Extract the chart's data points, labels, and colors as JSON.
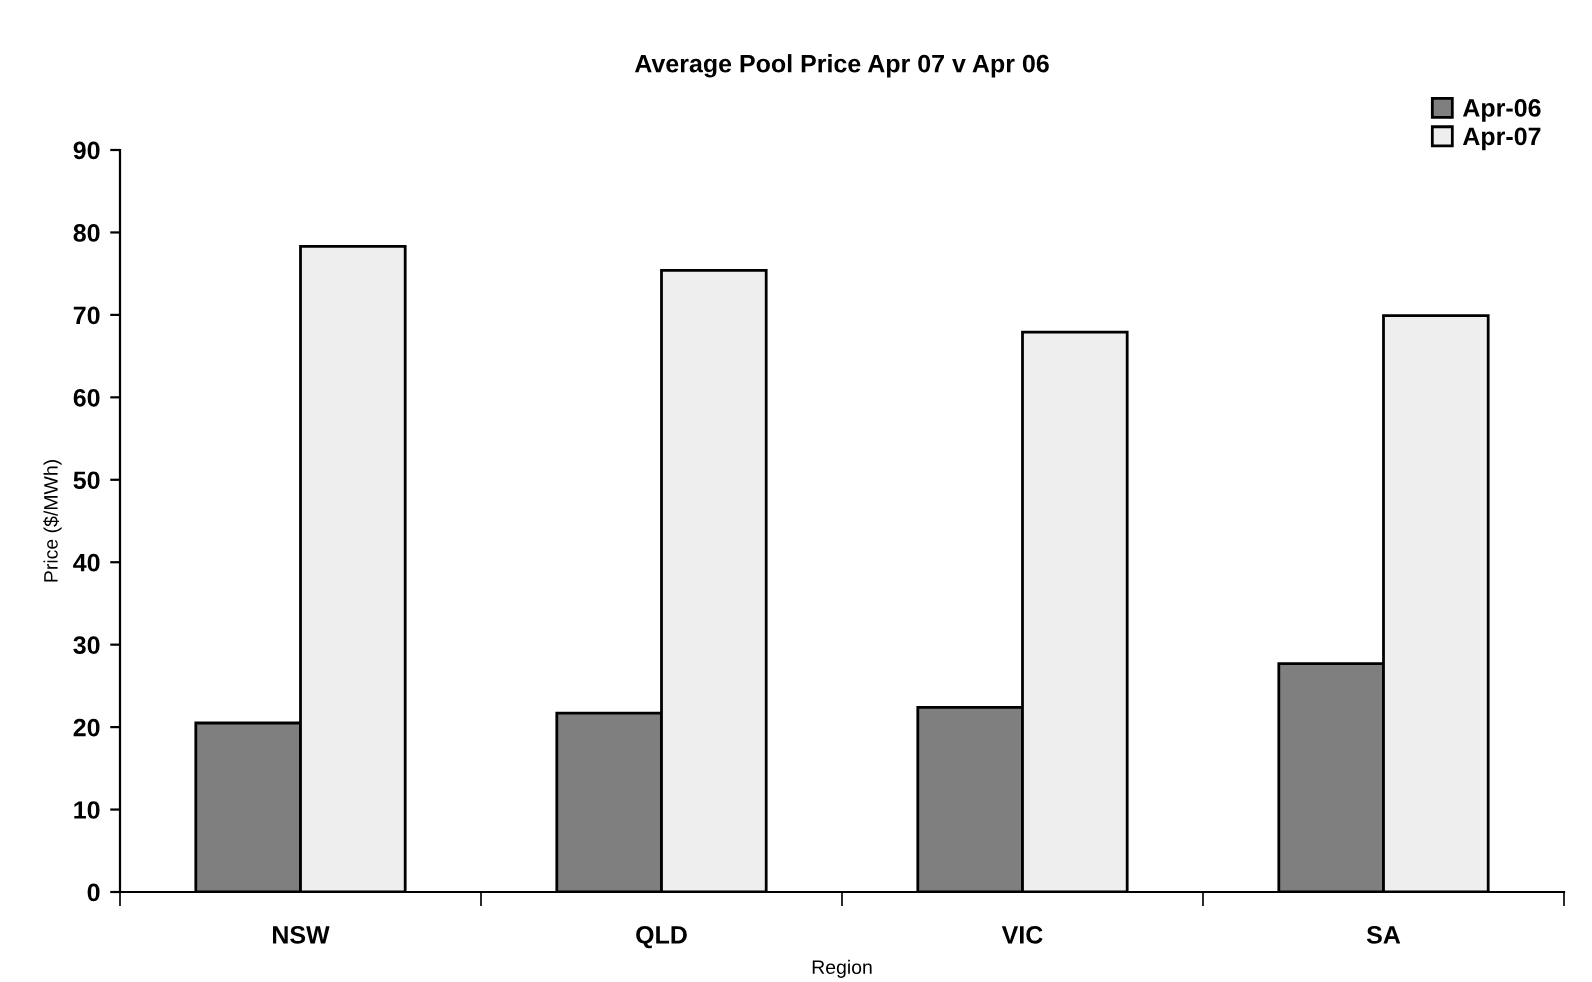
{
  "chart_data": {
    "type": "bar",
    "title": "Average Pool Price Apr 07 v Apr 06",
    "xlabel": "Region",
    "ylabel": "Price ($/MWh)",
    "categories": [
      "NSW",
      "QLD",
      "VIC",
      "SA"
    ],
    "series": [
      {
        "name": "Apr-06",
        "color": "#7f7f7f",
        "values": [
          20.5,
          21.7,
          22.4,
          27.7
        ]
      },
      {
        "name": "Apr-07",
        "color": "#eeeeee",
        "values": [
          78.3,
          75.4,
          67.9,
          69.9
        ]
      }
    ],
    "ylim": [
      0,
      90
    ],
    "yticks": [
      0,
      10,
      20,
      30,
      40,
      50,
      60,
      70,
      80,
      90
    ],
    "grid": false,
    "legend": "top right"
  }
}
